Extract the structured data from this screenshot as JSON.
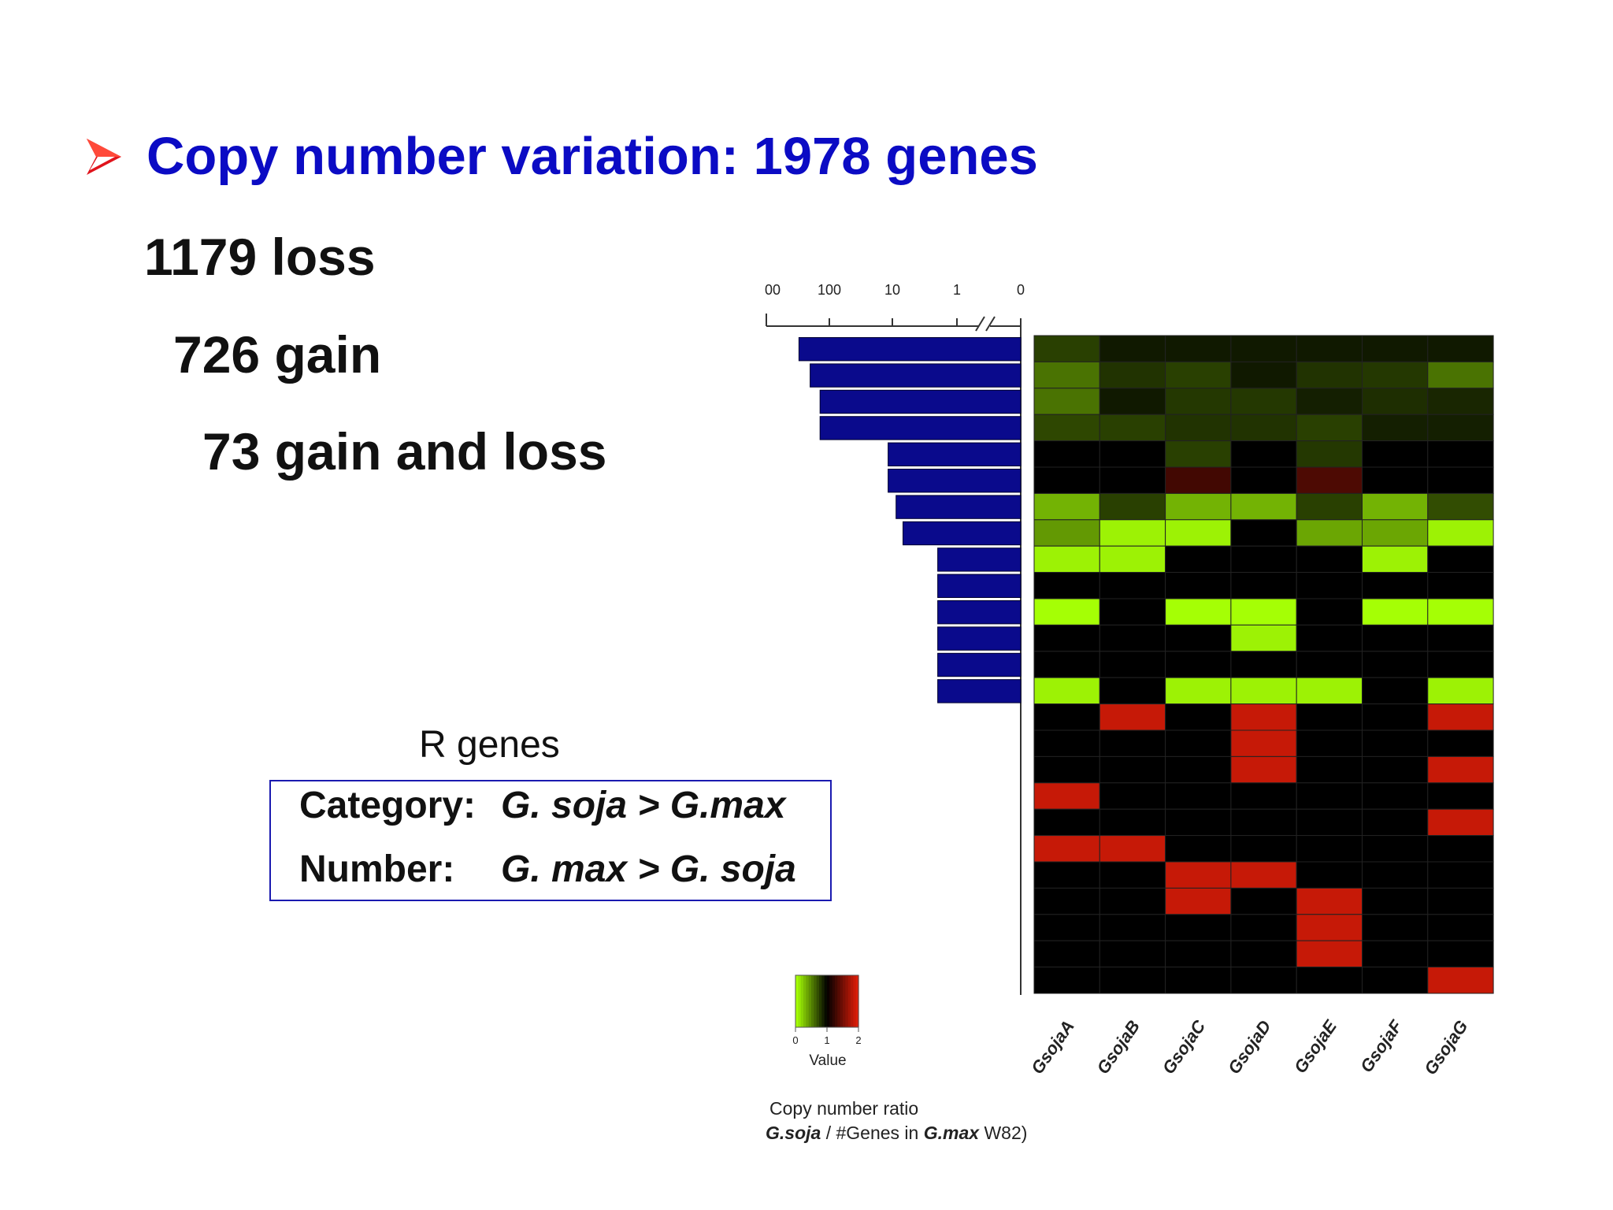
{
  "slide": {
    "bullet_text": "Copy number variation: 1978 genes",
    "stats": [
      "1179 loss",
      "726 gain",
      "73 gain and loss"
    ],
    "rgenes_label": "R genes",
    "box": {
      "category_key": "Category:",
      "category_value": "G. soja > G.max",
      "number_key": "Number:",
      "number_value": "G. max > G. soja"
    },
    "colors": {
      "bullet": "#0b0bc4",
      "arrow": "#e0141c",
      "box_border": "#1a1ab0"
    }
  },
  "chart_data": [
    {
      "type": "bar",
      "orientation": "horizontal",
      "scale": "log",
      "axis_ticks": [
        "00",
        "100",
        "10",
        "1",
        "0"
      ],
      "bar_color": "#0a0a8c",
      "values": [
        300,
        200,
        140,
        140,
        12,
        12,
        9,
        7,
        2,
        2,
        2,
        2,
        2,
        2
      ],
      "xlim": [
        0,
        1000
      ]
    },
    {
      "type": "heatmap",
      "columns": [
        "GsojaA",
        "GsojaB",
        "GsojaC",
        "GsojaD",
        "GsojaE",
        "GsojaF",
        "GsojaG"
      ],
      "scale": [
        0,
        2
      ],
      "legend_ticks": [
        "0",
        "1",
        "2"
      ],
      "legend_title": "Value",
      "caption_line1": "Copy number ratio",
      "caption_soja": "G.soja",
      "caption_mid": " / #Genes in ",
      "caption_max": "G.max",
      "caption_end": " W82)",
      "values": [
        [
          0.75,
          0.9,
          0.9,
          0.9,
          0.9,
          0.9,
          0.9
        ],
        [
          0.55,
          0.8,
          0.75,
          0.9,
          0.8,
          0.78,
          0.55
        ],
        [
          0.55,
          0.9,
          0.78,
          0.78,
          0.88,
          0.82,
          0.85
        ],
        [
          0.72,
          0.75,
          0.8,
          0.8,
          0.75,
          0.88,
          0.88
        ],
        [
          1,
          1,
          0.75,
          1,
          0.78,
          1,
          1
        ],
        [
          1,
          1,
          1.3,
          1,
          1.35,
          1,
          1
        ],
        [
          0.3,
          0.75,
          0.3,
          0.3,
          0.75,
          0.3,
          0.7
        ],
        [
          0.4,
          0.05,
          0.05,
          1,
          0.35,
          0.35,
          0.05
        ],
        [
          0.05,
          0.05,
          1,
          1,
          1,
          0.05,
          1
        ],
        [
          1,
          1,
          1,
          1,
          1,
          1,
          1
        ],
        [
          0,
          1,
          0,
          0,
          1,
          0,
          0
        ],
        [
          1,
          1,
          1,
          0.05,
          1,
          1,
          1
        ],
        [
          1,
          1,
          1,
          1,
          1,
          1,
          1
        ],
        [
          0.05,
          1,
          0.05,
          0.05,
          0.05,
          1,
          0.05
        ],
        [
          1,
          1.9,
          1,
          1.9,
          1,
          1,
          1.9
        ],
        [
          1,
          1,
          1,
          1.9,
          1,
          1,
          1
        ],
        [
          1,
          1,
          1,
          1.9,
          1,
          1,
          1.9
        ],
        [
          1.9,
          1,
          1,
          1,
          1,
          1,
          1
        ],
        [
          1,
          1,
          1,
          1,
          1,
          1,
          1.9
        ],
        [
          1.9,
          1.9,
          1,
          1,
          1,
          1,
          1
        ],
        [
          1,
          1,
          1.9,
          1.9,
          1,
          1,
          1
        ],
        [
          1,
          1,
          1.9,
          1,
          1.9,
          1,
          1
        ],
        [
          1,
          1,
          1,
          1,
          1.9,
          1,
          1
        ],
        [
          1,
          1,
          1,
          1,
          1.9,
          1,
          1
        ],
        [
          1,
          1,
          1,
          1,
          1,
          1,
          1.9
        ]
      ]
    }
  ]
}
